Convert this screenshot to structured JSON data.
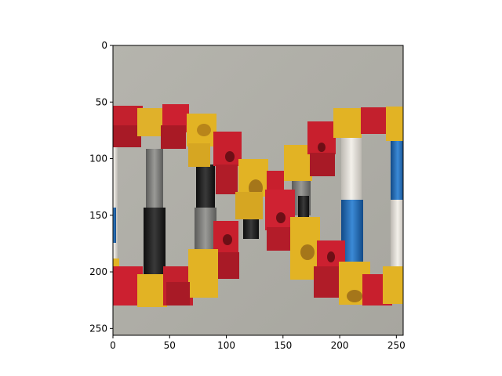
{
  "figure": {
    "image_description_hidden": "",
    "x_axis": {
      "ticks": [
        0,
        50,
        100,
        150,
        200,
        250
      ],
      "range": [
        0,
        256
      ]
    },
    "y_axis": {
      "ticks": [
        0,
        50,
        100,
        150,
        200,
        250
      ],
      "range": [
        0,
        256
      ],
      "inverted": true
    },
    "colors": {
      "background": "#aeada6",
      "red": "#c8202e",
      "yellow": "#e2b324",
      "grey": "#7d7d7b",
      "light_grey": "#bdbdb8",
      "black": "#1c1c1c",
      "blue": "#1e67b4",
      "white": "#e9e5de"
    }
  }
}
